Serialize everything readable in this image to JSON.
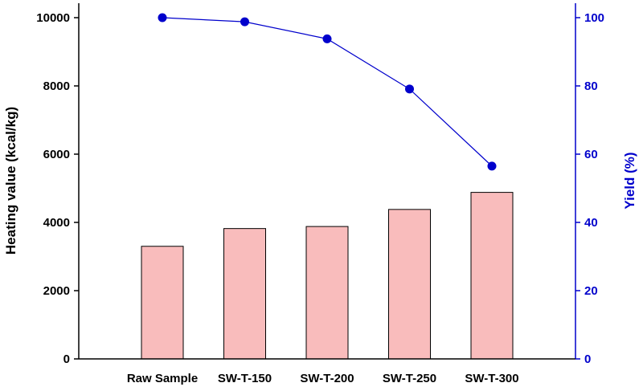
{
  "chart_data": {
    "type": "bar+line",
    "categories": [
      "Raw Sample",
      "SW-T-150",
      "SW-T-200",
      "SW-T-250",
      "SW-T-300"
    ],
    "series": [
      {
        "chart_type": "bar",
        "axis": "left",
        "values": [
          3300,
          3820,
          3880,
          4380,
          4880
        ],
        "color": "#f9bcbc",
        "edge_color": "#000000"
      },
      {
        "chart_type": "line",
        "axis": "right",
        "values": [
          100,
          98.8,
          93.8,
          79.1,
          56.5
        ],
        "color": "#0000cc",
        "marker": "circle"
      }
    ],
    "ylabel_left": "Heating value (kcal/kg)",
    "ylabel_right": "Yield (%)",
    "ylim_left": [
      0,
      10000
    ],
    "ylim_right": [
      0,
      100
    ],
    "yticks_left": [
      "0",
      "2000",
      "4000",
      "6000",
      "8000",
      "10000"
    ],
    "yticks_right": [
      "0",
      "20",
      "40",
      "60",
      "80",
      "100"
    ],
    "right_axis_color": "#0000cc",
    "grid": false,
    "legend": "none"
  }
}
